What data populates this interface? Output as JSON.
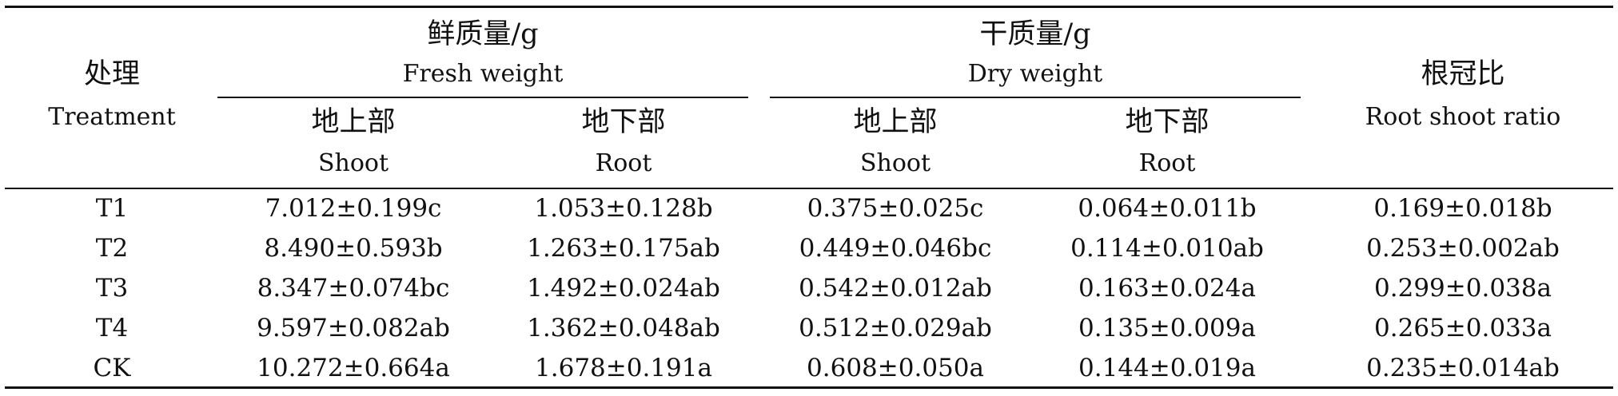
{
  "header": {
    "treatment": {
      "zh": "处理",
      "en": "Treatment"
    },
    "fresh_weight": {
      "zh": "鲜质量/g",
      "en": "Fresh weight"
    },
    "dry_weight": {
      "zh": "干质量/g",
      "en": "Dry weight"
    },
    "ratio": {
      "zh": "根冠比",
      "en": "Root shoot ratio"
    },
    "shoot": {
      "zh": "地上部",
      "en": "Shoot"
    },
    "root": {
      "zh": "地下部",
      "en": "Root"
    }
  },
  "rows": [
    {
      "treatment": "T1",
      "fresh_shoot": "7.012±0.199c",
      "fresh_root": "1.053±0.128b",
      "dry_shoot": "0.375±0.025c",
      "dry_root": "0.064±0.011b",
      "ratio": "0.169±0.018b"
    },
    {
      "treatment": "T2",
      "fresh_shoot": "8.490±0.593b",
      "fresh_root": "1.263±0.175ab",
      "dry_shoot": "0.449±0.046bc",
      "dry_root": "0.114±0.010ab",
      "ratio": "0.253±0.002ab"
    },
    {
      "treatment": "T3",
      "fresh_shoot": "8.347±0.074bc",
      "fresh_root": "1.492±0.024ab",
      "dry_shoot": "0.542±0.012ab",
      "dry_root": "0.163±0.024a",
      "ratio": "0.299±0.038a"
    },
    {
      "treatment": "T4",
      "fresh_shoot": "9.597±0.082ab",
      "fresh_root": "1.362±0.048ab",
      "dry_shoot": "0.512±0.029ab",
      "dry_root": "0.135±0.009a",
      "ratio": "0.265±0.033a"
    },
    {
      "treatment": "CK",
      "fresh_shoot": "10.272±0.664a",
      "fresh_root": "1.678±0.191a",
      "dry_shoot": "0.608±0.050a",
      "dry_root": "0.144±0.019a",
      "ratio": "0.235±0.014ab"
    }
  ]
}
